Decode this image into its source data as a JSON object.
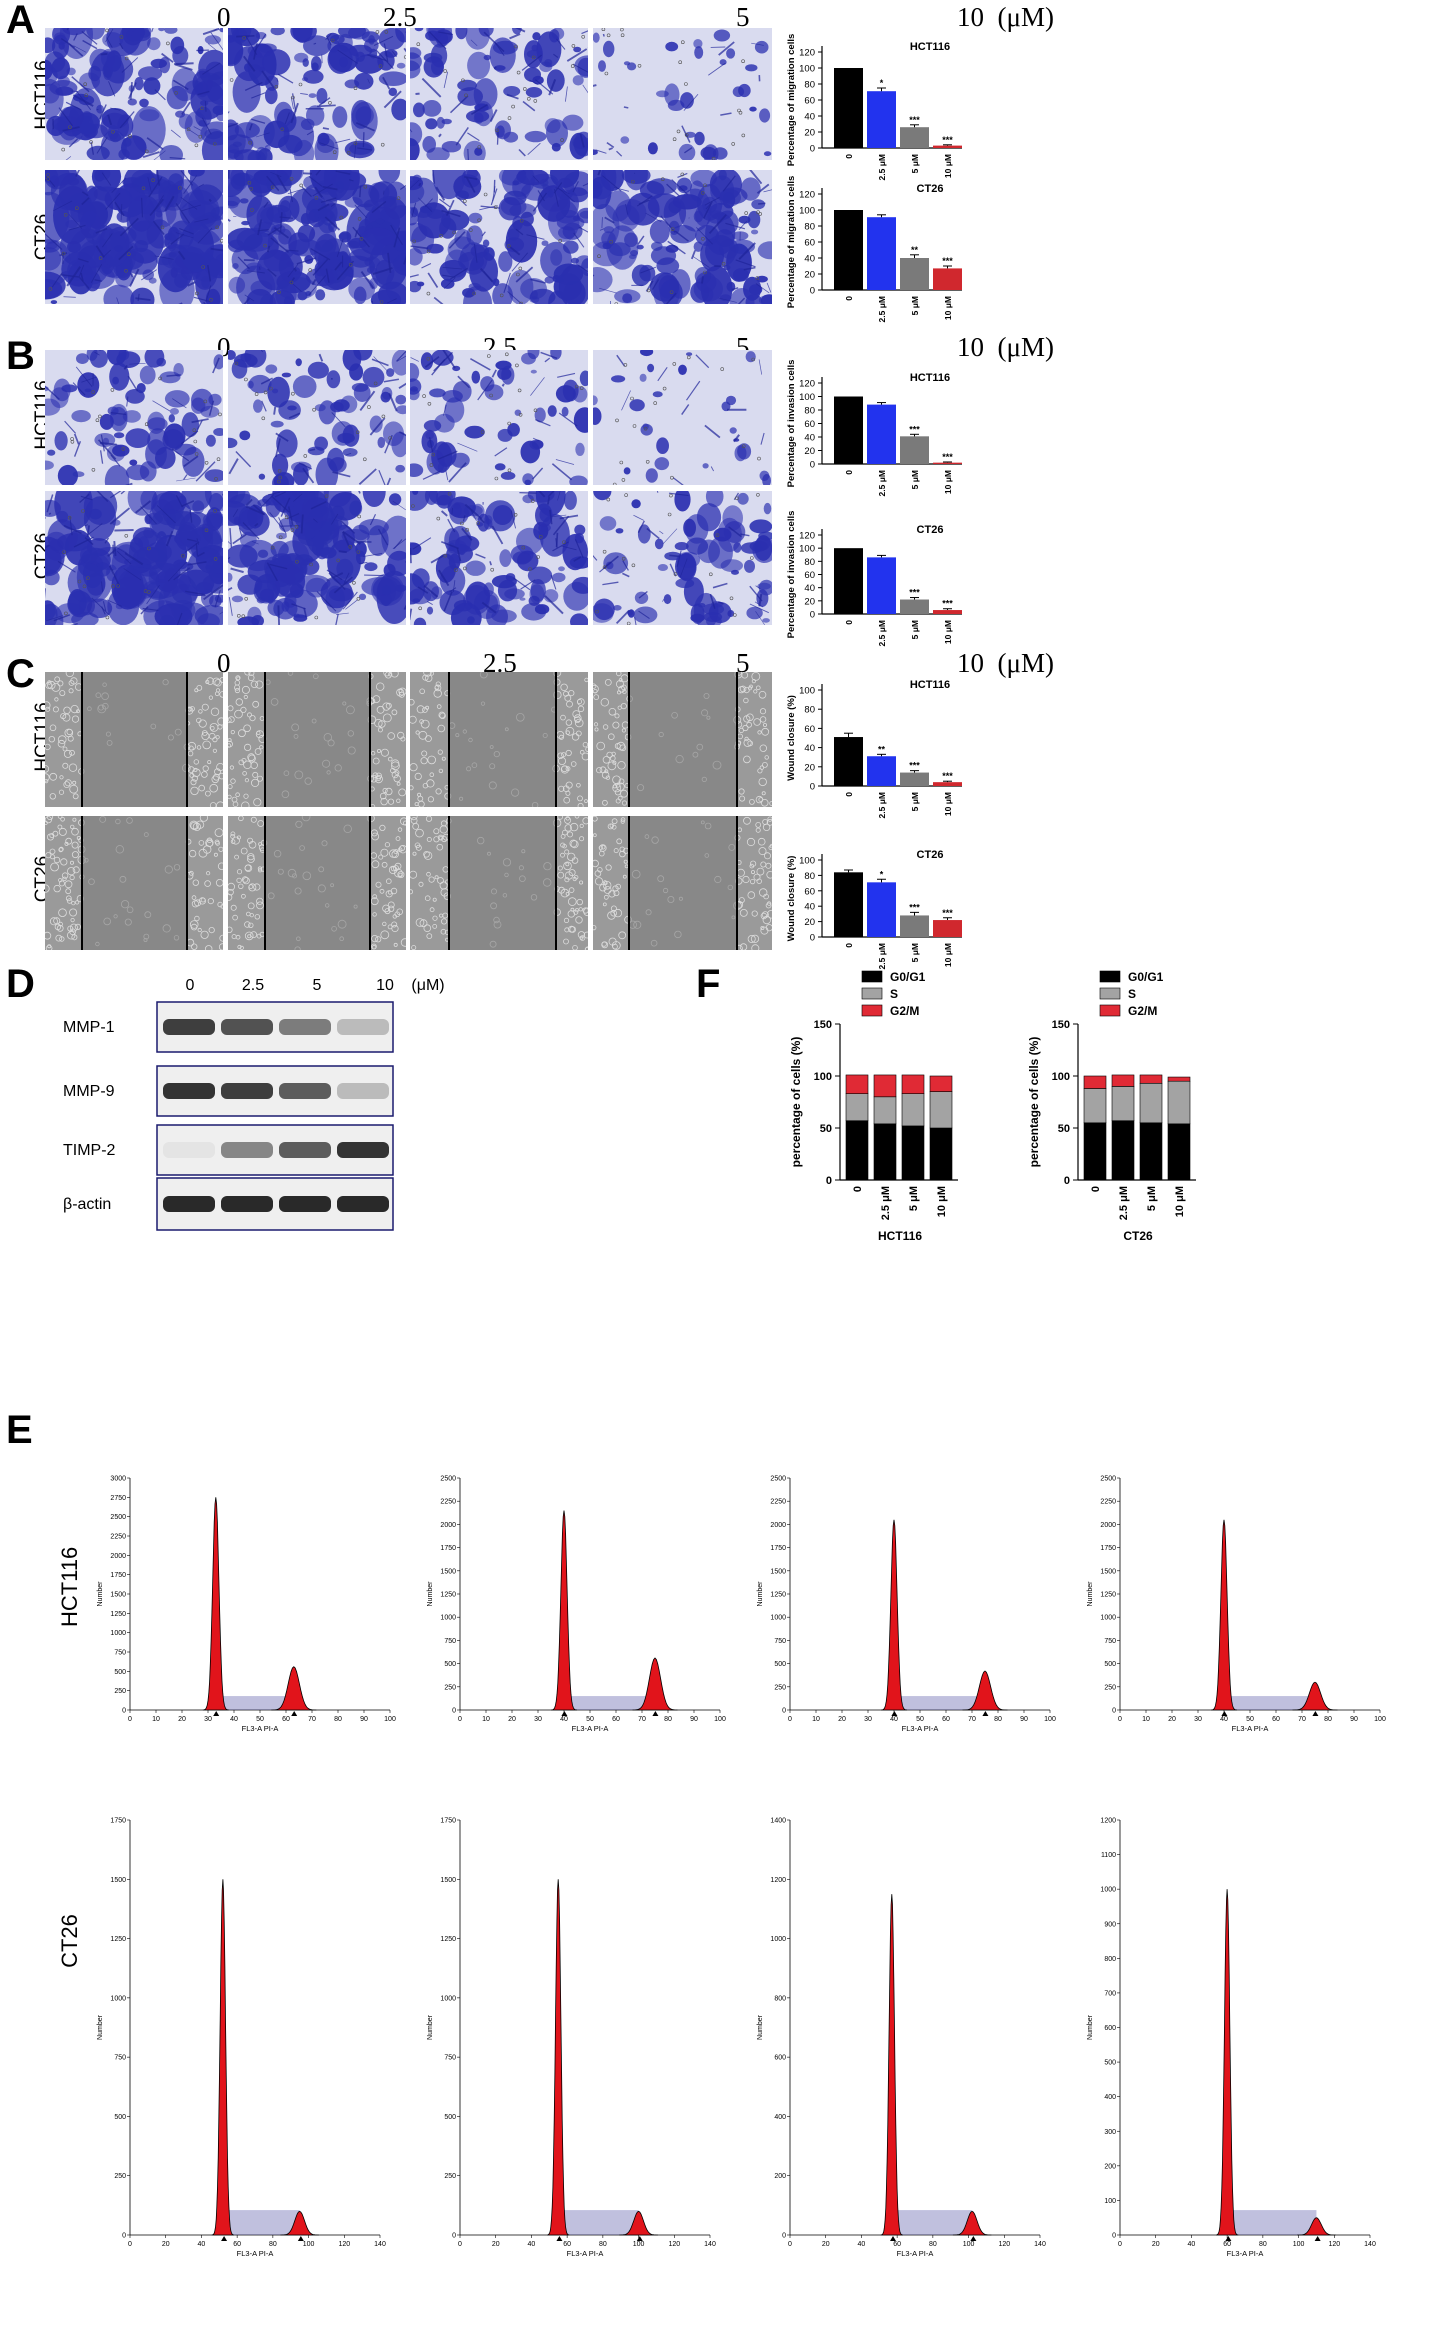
{
  "panels": {
    "A": "A",
    "B": "B",
    "C": "C",
    "D": "D",
    "E": "E",
    "F": "F"
  },
  "concentrations": [
    "0",
    "2.5",
    "5",
    "10  (μM)"
  ],
  "row_labels": {
    "hct": "HCT116",
    "ct": "CT26"
  },
  "micrograph_colors": {
    "stain_bg": "#d9dbef",
    "stain": "#2a2fb0",
    "wound_bg": "#8f8f8f",
    "wound_gap": "#7a7a7a"
  },
  "bar_colors": [
    "#000000",
    "#2233ee",
    "#7a7a7a",
    "#d0282e"
  ],
  "bar_x_categories": [
    "0",
    "2.5 μM",
    "5 μM",
    "10 μM"
  ],
  "western": {
    "conc": [
      "0",
      "2.5",
      "5",
      "10",
      "(μM)"
    ],
    "rows": [
      "MMP-1",
      "MMP-9",
      "TIMP-2",
      "β-actin"
    ]
  },
  "cell_cycle_legend": [
    "G0/G1",
    "S",
    "G2/M"
  ],
  "histogram_axis": {
    "xlabel": "FL3-A PI-A",
    "ylabel": "Number"
  },
  "chart_data": [
    {
      "type": "bar",
      "title": "HCT116",
      "ylabel": "Percentage of migration cells",
      "categories": [
        "0",
        "2.5 μM",
        "5 μM",
        "10 μM"
      ],
      "values": [
        100,
        71,
        26,
        3
      ],
      "errors": [
        0,
        4,
        3,
        1
      ],
      "sig": [
        "",
        "*",
        "***",
        "***"
      ],
      "ylim": [
        0,
        120
      ],
      "yticks": [
        0,
        20,
        40,
        60,
        80,
        100,
        120
      ]
    },
    {
      "type": "bar",
      "title": "CT26",
      "ylabel": "Percentage of migration cells",
      "categories": [
        "0",
        "2.5 μM",
        "5 μM",
        "10 μM"
      ],
      "values": [
        100,
        91,
        40,
        27
      ],
      "errors": [
        0,
        3,
        4,
        3
      ],
      "sig": [
        "",
        "",
        "**",
        "***"
      ],
      "ylim": [
        0,
        120
      ],
      "yticks": [
        0,
        20,
        40,
        60,
        80,
        100,
        120
      ]
    },
    {
      "type": "bar",
      "title": "HCT116",
      "ylabel": "Percentage of invasion cells",
      "categories": [
        "0",
        "2.5 μM",
        "5 μM",
        "10 μM"
      ],
      "values": [
        100,
        88,
        41,
        2
      ],
      "errors": [
        0,
        3,
        3,
        1
      ],
      "sig": [
        "",
        "",
        "***",
        "***"
      ],
      "ylim": [
        0,
        120
      ],
      "yticks": [
        0,
        20,
        40,
        60,
        80,
        100,
        120
      ]
    },
    {
      "type": "bar",
      "title": "CT26",
      "ylabel": "Percentage of invasion cells",
      "categories": [
        "0",
        "2.5 μM",
        "5 μM",
        "10 μM"
      ],
      "values": [
        100,
        86,
        22,
        6
      ],
      "errors": [
        0,
        3,
        3,
        2
      ],
      "sig": [
        "",
        "",
        "***",
        "***"
      ],
      "ylim": [
        0,
        120
      ],
      "yticks": [
        0,
        20,
        40,
        60,
        80,
        100,
        120
      ]
    },
    {
      "type": "bar",
      "title": "HCT116",
      "ylabel": "Wound closure (%)",
      "categories": [
        "0",
        "2.5 μM",
        "5 μM",
        "10 μM"
      ],
      "values": [
        51,
        31,
        14,
        4
      ],
      "errors": [
        4,
        2,
        2,
        1
      ],
      "sig": [
        "",
        "**",
        "***",
        "***"
      ],
      "ylim": [
        0,
        100
      ],
      "yticks": [
        0,
        20,
        40,
        60,
        80,
        100
      ]
    },
    {
      "type": "bar",
      "title": "CT26",
      "ylabel": "Wound closure (%)",
      "categories": [
        "0",
        "2.5 μM",
        "5 μM",
        "10 μM"
      ],
      "values": [
        84,
        71,
        28,
        22
      ],
      "errors": [
        3,
        4,
        4,
        3
      ],
      "sig": [
        "",
        "*",
        "***",
        "***"
      ],
      "ylim": [
        0,
        100
      ],
      "yticks": [
        0,
        20,
        40,
        60,
        80,
        100
      ]
    },
    {
      "type": "stacked_bar",
      "title": "HCT116",
      "ylabel": "percentage of cells (%)",
      "categories": [
        "0",
        "2.5 μM",
        "5 μM",
        "10 μM"
      ],
      "series": [
        {
          "name": "G0/G1",
          "values": [
            57,
            54,
            52,
            50
          ]
        },
        {
          "name": "S",
          "values": [
            26,
            26,
            31,
            35
          ]
        },
        {
          "name": "G2/M",
          "values": [
            18,
            21,
            18,
            15
          ]
        }
      ],
      "ylim": [
        0,
        150
      ],
      "yticks": [
        0,
        50,
        100,
        150
      ]
    },
    {
      "type": "stacked_bar",
      "title": "CT26",
      "ylabel": "percentage of cells (%)",
      "categories": [
        "0",
        "2.5 μM",
        "5 μM",
        "10 μM"
      ],
      "series": [
        {
          "name": "G0/G1",
          "values": [
            55,
            57,
            55,
            54
          ]
        },
        {
          "name": "S",
          "values": [
            33,
            33,
            38,
            41
          ]
        },
        {
          "name": "G2/M",
          "values": [
            12,
            11,
            8,
            4
          ]
        }
      ],
      "ylim": [
        0,
        150
      ],
      "yticks": [
        0,
        50,
        100,
        150
      ]
    }
  ],
  "histograms": [
    {
      "ymax": 3000,
      "yticks": [
        0,
        250,
        500,
        750,
        1000,
        1250,
        1500,
        1750,
        2000,
        2250,
        2500,
        2750,
        3000
      ],
      "xmax": 100,
      "xticks": [
        0,
        10,
        20,
        30,
        40,
        50,
        60,
        70,
        80,
        90,
        100
      ],
      "g1": 33,
      "g2": 63,
      "g1h": 2750,
      "g2h": 560,
      "sw": 1.2
    },
    {
      "ymax": 2500,
      "yticks": [
        0,
        250,
        500,
        750,
        1000,
        1250,
        1500,
        1750,
        2000,
        2250,
        2500
      ],
      "xmax": 100,
      "xticks": [
        0,
        10,
        20,
        30,
        40,
        50,
        60,
        70,
        80,
        90,
        100
      ],
      "g1": 40,
      "g2": 75,
      "g1h": 2150,
      "g2h": 560,
      "sw": 1.2
    },
    {
      "ymax": 2500,
      "yticks": [
        0,
        250,
        500,
        750,
        1000,
        1250,
        1500,
        1750,
        2000,
        2250,
        2500
      ],
      "xmax": 100,
      "xticks": [
        0,
        10,
        20,
        30,
        40,
        50,
        60,
        70,
        80,
        90,
        100
      ],
      "g1": 40,
      "g2": 75,
      "g1h": 2050,
      "g2h": 420,
      "sw": 1.2
    },
    {
      "ymax": 2500,
      "yticks": [
        0,
        250,
        500,
        750,
        1000,
        1250,
        1500,
        1750,
        2000,
        2250,
        2500
      ],
      "xmax": 100,
      "xticks": [
        0,
        10,
        20,
        30,
        40,
        50,
        60,
        70,
        80,
        90,
        100
      ],
      "g1": 40,
      "g2": 75,
      "g1h": 2050,
      "g2h": 300,
      "sw": 1.2
    },
    {
      "ymax": 1750,
      "yticks": [
        0,
        250,
        500,
        750,
        1000,
        1250,
        1500,
        1750
      ],
      "xmax": 140,
      "xticks": [
        0,
        20,
        40,
        60,
        80,
        100,
        120,
        140
      ],
      "g1": 52,
      "g2": 95,
      "g1h": 1500,
      "g2h": 100,
      "sw": 1.5
    },
    {
      "ymax": 1750,
      "yticks": [
        0,
        250,
        500,
        750,
        1000,
        1250,
        1500,
        1750
      ],
      "xmax": 140,
      "xticks": [
        0,
        20,
        40,
        60,
        80,
        100,
        120,
        140
      ],
      "g1": 55,
      "g2": 100,
      "g1h": 1500,
      "g2h": 100,
      "sw": 1.5
    },
    {
      "ymax": 1400,
      "yticks": [
        0,
        200,
        400,
        600,
        800,
        1000,
        1200,
        1400
      ],
      "xmax": 140,
      "xticks": [
        0,
        20,
        40,
        60,
        80,
        100,
        120,
        140
      ],
      "g1": 57,
      "g2": 102,
      "g1h": 1150,
      "g2h": 80,
      "sw": 1.5
    },
    {
      "ymax": 1200,
      "yticks": [
        0,
        100,
        200,
        300,
        400,
        500,
        600,
        700,
        800,
        900,
        1000,
        1100,
        1200
      ],
      "xmax": 140,
      "xticks": [
        0,
        20,
        40,
        60,
        80,
        100,
        120,
        140
      ],
      "g1": 60,
      "g2": 110,
      "g1h": 1000,
      "g2h": 50,
      "sw": 1.5
    }
  ]
}
